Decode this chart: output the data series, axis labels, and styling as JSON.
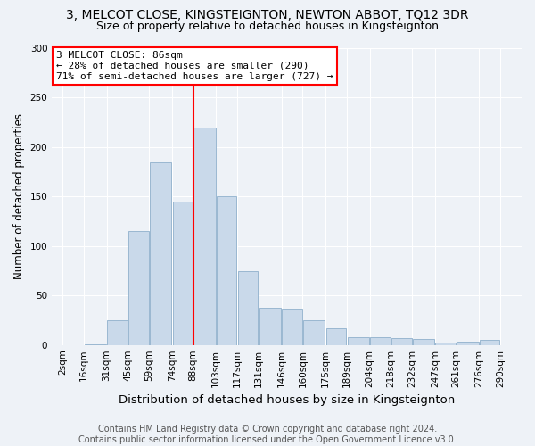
{
  "title": "3, MELCOT CLOSE, KINGSTEIGNTON, NEWTON ABBOT, TQ12 3DR",
  "subtitle": "Size of property relative to detached houses in Kingsteignton",
  "xlabel": "Distribution of detached houses by size in Kingsteignton",
  "ylabel": "Number of detached properties",
  "footer": "Contains HM Land Registry data © Crown copyright and database right 2024.\nContains public sector information licensed under the Open Government Licence v3.0.",
  "bins_labels": [
    "2sqm",
    "16sqm",
    "31sqm",
    "45sqm",
    "59sqm",
    "74sqm",
    "88sqm",
    "103sqm",
    "117sqm",
    "131sqm",
    "146sqm",
    "160sqm",
    "175sqm",
    "189sqm",
    "204sqm",
    "218sqm",
    "232sqm",
    "247sqm",
    "261sqm",
    "276sqm",
    "290sqm"
  ],
  "bin_edges": [
    2,
    16,
    31,
    45,
    59,
    74,
    88,
    103,
    117,
    131,
    146,
    160,
    175,
    189,
    204,
    218,
    232,
    247,
    261,
    276,
    290
  ],
  "bar_values": [
    0,
    1,
    25,
    115,
    185,
    145,
    220,
    150,
    75,
    38,
    37,
    25,
    17,
    8,
    8,
    7,
    6,
    2,
    3,
    5
  ],
  "bar_color": "#c9d9ea",
  "bar_edge_color": "#8fb0cc",
  "property_line_x": 88,
  "annotation_text": "3 MELCOT CLOSE: 86sqm\n← 28% of detached houses are smaller (290)\n71% of semi-detached houses are larger (727) →",
  "annotation_box_facecolor": "white",
  "annotation_box_edgecolor": "red",
  "vline_color": "red",
  "ylim": [
    0,
    300
  ],
  "yticks": [
    0,
    50,
    100,
    150,
    200,
    250,
    300
  ],
  "background_color": "#eef2f7",
  "grid_color": "white",
  "title_fontsize": 10,
  "subtitle_fontsize": 9,
  "xlabel_fontsize": 9.5,
  "ylabel_fontsize": 8.5,
  "tick_fontsize": 7.5,
  "footer_fontsize": 7,
  "annot_fontsize": 8
}
